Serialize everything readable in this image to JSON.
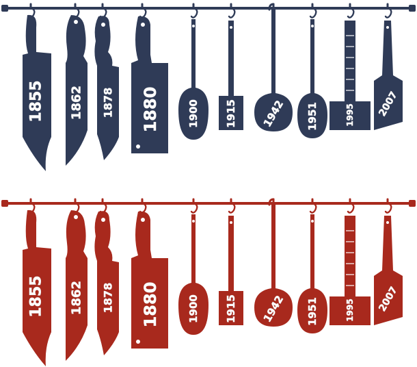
{
  "colors": {
    "navy": "#2f3b57",
    "red": "#a8291d",
    "text": "#ffffff",
    "background": "#ffffff"
  },
  "racks": [
    {
      "id": "top",
      "color": "navy",
      "tools": [
        {
          "type": "chef-knife",
          "year": "1855"
        },
        {
          "type": "carving-knife",
          "year": "1862"
        },
        {
          "type": "serrated-knife",
          "year": "1878"
        },
        {
          "type": "cleaver",
          "year": "1880"
        },
        {
          "type": "slotted-spoon",
          "year": "1900"
        },
        {
          "type": "spatula",
          "year": "1915"
        },
        {
          "type": "ladle",
          "year": "1942"
        },
        {
          "type": "spoon",
          "year": "1951"
        },
        {
          "type": "meat-tenderizer",
          "year": "1995"
        },
        {
          "type": "turner",
          "year": "2007"
        }
      ]
    },
    {
      "id": "bottom",
      "color": "red",
      "tools": [
        {
          "type": "chef-knife",
          "year": "1855"
        },
        {
          "type": "carving-knife",
          "year": "1862"
        },
        {
          "type": "serrated-knife",
          "year": "1878"
        },
        {
          "type": "cleaver",
          "year": "1880"
        },
        {
          "type": "slotted-spoon",
          "year": "1900"
        },
        {
          "type": "spatula",
          "year": "1915"
        },
        {
          "type": "ladle",
          "year": "1942"
        },
        {
          "type": "spoon",
          "year": "1951"
        },
        {
          "type": "meat-tenderizer",
          "year": "1995"
        },
        {
          "type": "turner",
          "year": "2007"
        }
      ]
    }
  ]
}
